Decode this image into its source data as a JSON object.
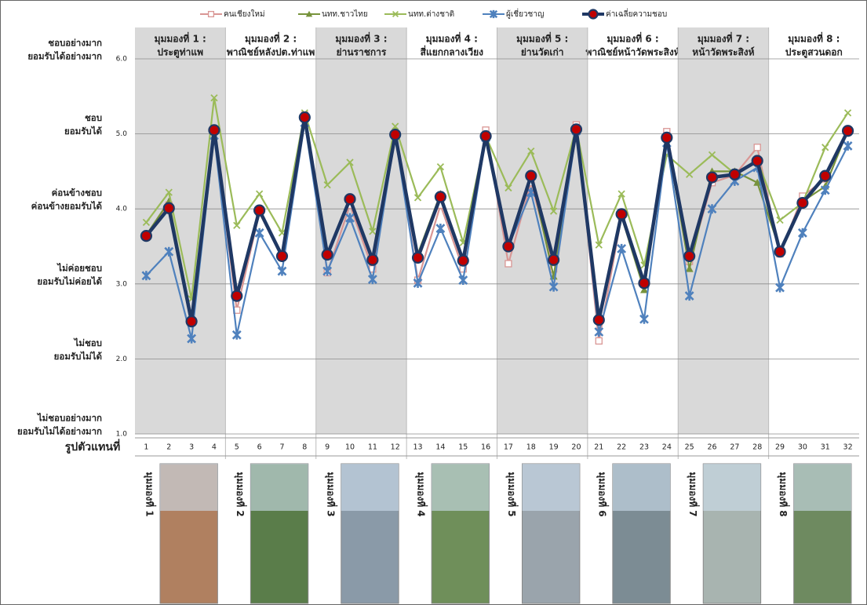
{
  "chart_data": {
    "type": "line",
    "categories": [
      "1",
      "2",
      "3",
      "4",
      "5",
      "6",
      "7",
      "8",
      "9",
      "10",
      "11",
      "12",
      "13",
      "14",
      "15",
      "16",
      "17",
      "18",
      "19",
      "20",
      "21",
      "22",
      "23",
      "24",
      "25",
      "26",
      "27",
      "28",
      "29",
      "30",
      "31",
      "32"
    ],
    "x_label": "รูปตัวแทนที่",
    "ylim": [
      1,
      6
    ],
    "yticks": [
      {
        "value": 1,
        "label": "1.0"
      },
      {
        "value": 2,
        "label": "2.0"
      },
      {
        "value": 3,
        "label": "3.0"
      },
      {
        "value": 4,
        "label": "4.0"
      },
      {
        "value": 5,
        "label": "5.0"
      },
      {
        "value": 6,
        "label": "6.0"
      }
    ],
    "level_labels": [
      [
        "ไม่ชอบอย่างมาก",
        "ยอมรับไม่ได้อย่างมาก"
      ],
      [
        "ไม่ชอบ",
        "ยอมรับไม่ได้"
      ],
      [
        "ไม่ค่อยชอบ",
        "ยอมรับไม่ค่อยได้"
      ],
      [
        "ค่อนข้างชอบ",
        "ค่อนข้างยอมรับได้"
      ],
      [
        "ชอบ",
        "ยอมรับได้"
      ],
      [
        "ชอบอย่างมาก",
        "ยอมรับได้อย่างมาก"
      ]
    ],
    "grid": true,
    "groups": [
      {
        "title": "มุมมองที่ 1 :",
        "subtitle": "ประตูท่าแพ",
        "photo_label": "มุมมองที่ 1"
      },
      {
        "title": "มุมมองที่ 2 :",
        "subtitle": "พาณิชย์หลังปต.ท่าแพ",
        "photo_label": "มุมมองที่ 2"
      },
      {
        "title": "มุมมองที่ 3 :",
        "subtitle": "ย่านราชการ",
        "photo_label": "มุมมองที่ 3"
      },
      {
        "title": "มุมมองที่ 4 :",
        "subtitle": "สี่แยกกลางเวียง",
        "photo_label": "มุมมองที่ 4"
      },
      {
        "title": "มุมมองที่ 5 :",
        "subtitle": "ย่านวัดเก่า",
        "photo_label": "มุมมองที่ 5"
      },
      {
        "title": "มุมมองที่ 6 :",
        "subtitle": "พาณิชย์หน้าวัดพระสิงห์",
        "photo_label": "มุมมองที่ 6"
      },
      {
        "title": "มุมมองที่ 7 :",
        "subtitle": "หน้าวัดพระสิงห์",
        "photo_label": "มุมมองที่ 7"
      },
      {
        "title": "มุมมองที่ 8 :",
        "subtitle": "ประตูสวนดอก",
        "photo_label": "มุมมองที่ 8"
      }
    ],
    "series": [
      {
        "name": "คนเชียงใหม่",
        "color": "#d99694",
        "marker": "square",
        "values": [
          3.65,
          4.05,
          2.5,
          5.05,
          2.65,
          3.95,
          3.35,
          5.25,
          3.15,
          4.05,
          3.2,
          5.0,
          3.05,
          4.05,
          3.2,
          5.05,
          3.27,
          4.35,
          3.2,
          5.12,
          2.24,
          3.9,
          3.0,
          5.03,
          3.3,
          4.35,
          4.45,
          4.82,
          3.4,
          4.17,
          4.4,
          5.05
        ]
      },
      {
        "name": "นทท.ชาวไทย",
        "color": "#77933c",
        "marker": "triangle",
        "values": [
          3.65,
          4.1,
          2.55,
          5.05,
          2.85,
          3.95,
          3.4,
          5.2,
          3.4,
          4.15,
          3.35,
          5.0,
          3.4,
          4.2,
          3.3,
          4.95,
          3.5,
          4.45,
          3.1,
          5.05,
          2.55,
          3.9,
          2.92,
          4.95,
          3.2,
          4.5,
          4.5,
          4.35,
          3.45,
          4.1,
          4.3,
          5.05
        ]
      },
      {
        "name": "นทท.ต่างชาติ",
        "color": "#9bbb59",
        "marker": "x",
        "values": [
          3.82,
          4.22,
          2.8,
          5.48,
          3.78,
          4.2,
          3.68,
          5.28,
          4.32,
          4.62,
          3.7,
          5.1,
          4.15,
          4.56,
          3.55,
          4.97,
          4.28,
          4.77,
          3.97,
          5.08,
          3.52,
          4.2,
          3.25,
          4.72,
          4.46,
          4.72,
          4.47,
          4.65,
          3.85,
          4.08,
          4.82,
          5.28
        ]
      },
      {
        "name": "ผู้เชี่ยวชาญ",
        "color": "#4f81bd",
        "marker": "star",
        "values": [
          3.11,
          3.43,
          2.27,
          4.98,
          2.32,
          3.68,
          3.17,
          5.15,
          3.17,
          3.88,
          3.06,
          4.98,
          3.01,
          3.74,
          3.05,
          4.95,
          3.5,
          4.22,
          2.96,
          5.04,
          2.36,
          3.47,
          2.53,
          4.88,
          2.84,
          4.0,
          4.37,
          4.55,
          2.95,
          3.68,
          4.25,
          4.84
        ]
      },
      {
        "name": "ค่าเฉลี่ยความชอบ",
        "color": "#1f3864",
        "marker": "circle",
        "values": [
          3.64,
          4.01,
          2.5,
          5.05,
          2.84,
          3.98,
          3.37,
          5.22,
          3.39,
          4.13,
          3.32,
          4.99,
          3.35,
          4.16,
          3.31,
          4.97,
          3.5,
          4.44,
          3.32,
          5.06,
          2.52,
          3.93,
          3.01,
          4.95,
          3.37,
          4.42,
          4.46,
          4.64,
          3.43,
          4.08,
          4.44,
          5.04
        ]
      }
    ]
  }
}
